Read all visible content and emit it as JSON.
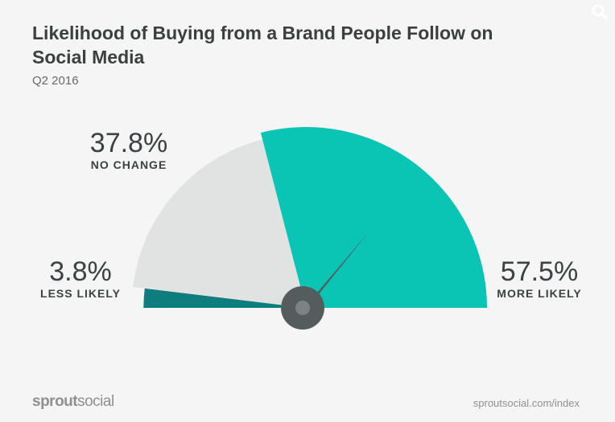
{
  "title": "Likelihood of Buying from a Brand People Follow on Social Media",
  "subtitle": "Q2 2016",
  "chart_data": {
    "type": "pie",
    "style": "semicircle-gauge",
    "slices": [
      {
        "label": "LESS LIKELY",
        "value": 3.8,
        "display": "3.8%",
        "color": "#0e7d7d"
      },
      {
        "label": "NO CHANGE",
        "value": 37.8,
        "display": "37.8%",
        "color": "#e1e3e3"
      },
      {
        "label": "MORE LIKELY",
        "value": 57.5,
        "display": "57.5%",
        "color": "#0ac4b4"
      }
    ],
    "needle_value": 57.5,
    "needle_color": "#545c5d",
    "legend": "none"
  },
  "footer": {
    "logo_part1": "sprout",
    "logo_part2": "social",
    "source": "sproutsocial.com/index"
  },
  "icons": {
    "search": "search-icon"
  }
}
